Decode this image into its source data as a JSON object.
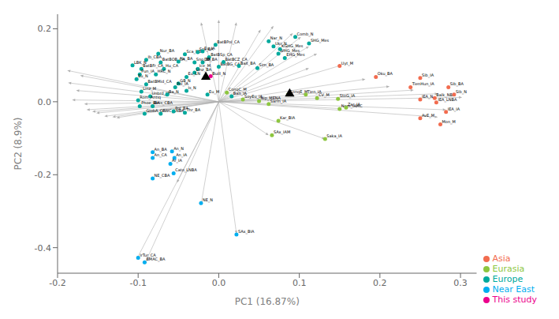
{
  "chart_data": {
    "type": "scatter",
    "xlabel": "PC1 (16.87%)",
    "ylabel": "PC2 (8.9%)",
    "xlim": [
      -0.2,
      0.32
    ],
    "ylim": [
      -0.47,
      0.24
    ],
    "xticks": [
      -0.2,
      -0.1,
      {
        "value": 0.0,
        "label": "0.0"
      },
      0.1,
      0.2,
      0.3
    ],
    "yticks": [
      -0.4,
      -0.2,
      {
        "value": 0.0,
        "label": "0.0"
      },
      0.2
    ],
    "legend": "lower right",
    "grid": false,
    "series": [
      {
        "name": "Asia",
        "color": "#f26c4f",
        "values": [
          {
            "label": "Uyt_M",
            "x": 0.15,
            "y": 0.098
          },
          {
            "label": "Oku_BA",
            "x": 0.195,
            "y": 0.068
          },
          {
            "label": "TienHun_IA",
            "x": 0.238,
            "y": 0.04
          },
          {
            "label": "Sib_IA",
            "x": 0.25,
            "y": 0.065
          },
          {
            "label": "Balk_NBA",
            "x": 0.268,
            "y": 0.01
          },
          {
            "label": "IEA_LNBA",
            "x": 0.27,
            "y": -0.002
          },
          {
            "label": "IEA_N",
            "x": 0.25,
            "y": 0.006
          },
          {
            "label": "Sib_BA",
            "x": 0.285,
            "y": 0.04
          },
          {
            "label": "Sib_N",
            "x": 0.292,
            "y": 0.02
          },
          {
            "label": "IEA_IA",
            "x": 0.282,
            "y": -0.028
          },
          {
            "label": "AvE_M",
            "x": 0.25,
            "y": -0.045
          },
          {
            "label": "Mon_M",
            "x": 0.275,
            "y": -0.062
          }
        ]
      },
      {
        "name": "Eurasia",
        "color": "#8dc63f",
        "values": [
          {
            "label": "ConqC_M",
            "x": 0.01,
            "y": 0.025
          },
          {
            "label": "SoyEu_IA",
            "x": 0.03,
            "y": 0.006
          },
          {
            "label": "Sarm_IA",
            "x": 0.062,
            "y": -0.006
          },
          {
            "label": "ConqE_M",
            "x": 0.086,
            "y": 0.02
          },
          {
            "label": "Tien_IA",
            "x": 0.108,
            "y": 0.02
          },
          {
            "label": "CV_M",
            "x": 0.122,
            "y": 0.01
          },
          {
            "label": "StoG_IA",
            "x": 0.148,
            "y": 0.008
          },
          {
            "label": "Nom_IAMC",
            "x": 0.15,
            "y": -0.02
          },
          {
            "label": "Zar_IA",
            "x": 0.158,
            "y": -0.016
          },
          {
            "label": "Kar_BIA",
            "x": 0.074,
            "y": -0.052
          },
          {
            "label": "SAx_IAM",
            "x": 0.066,
            "y": -0.092
          },
          {
            "label": "Saka_IA",
            "x": 0.132,
            "y": -0.102
          },
          {
            "label": "Nip_MENA",
            "x": 0.05,
            "y": 0.002
          }
        ]
      },
      {
        "name": "Europe",
        "color": "#00a99d",
        "values": [
          {
            "label": "Nur_BA",
            "x": -0.075,
            "y": 0.132
          },
          {
            "label": "Ib_CBA",
            "x": -0.09,
            "y": 0.115
          },
          {
            "label": "LBK_N",
            "x": -0.107,
            "y": 0.1
          },
          {
            "label": "BatBOB_CA",
            "x": -0.072,
            "y": 0.108
          },
          {
            "label": "BatBFr_CA",
            "x": -0.096,
            "y": 0.09
          },
          {
            "label": "Hu_CA",
            "x": -0.068,
            "y": 0.09
          },
          {
            "label": "Pun_IA",
            "x": -0.098,
            "y": 0.075
          },
          {
            "label": "Eu_N",
            "x": -0.102,
            "y": 0.062
          },
          {
            "label": "BatBMid_CA",
            "x": -0.09,
            "y": 0.048
          },
          {
            "label": "Linz_M",
            "x": -0.096,
            "y": 0.028
          },
          {
            "label": "Unbrd_IA",
            "x": -0.085,
            "y": 0.015
          },
          {
            "label": "Rom_Antiq",
            "x": -0.1,
            "y": 0.004
          },
          {
            "label": "Phoe_BIA",
            "x": -0.098,
            "y": -0.012
          },
          {
            "label": "GlobA_CA",
            "x": -0.092,
            "y": -0.033
          },
          {
            "label": "Beis_CBA",
            "x": -0.082,
            "y": -0.012
          },
          {
            "label": "CWC_LNBA",
            "x": -0.072,
            "y": -0.033
          },
          {
            "label": "Sca_NBA",
            "x": -0.042,
            "y": 0.13
          },
          {
            "label": "Sru_BA",
            "x": -0.026,
            "y": 0.136
          },
          {
            "label": "Nx_BA",
            "x": -0.05,
            "y": 0.11
          },
          {
            "label": "GB_N",
            "x": -0.05,
            "y": 0.05
          },
          {
            "label": "Pol_IA",
            "x": -0.054,
            "y": 0.04
          },
          {
            "label": "Ba_N",
            "x": -0.064,
            "y": 0.02
          },
          {
            "label": "Pol_BA",
            "x": -0.056,
            "y": -0.026
          },
          {
            "label": "Thr_BA",
            "x": -0.042,
            "y": -0.03
          },
          {
            "label": "Ice_M",
            "x": -0.026,
            "y": 0.09
          },
          {
            "label": "Linz_BA",
            "x": -0.03,
            "y": 0.08
          },
          {
            "label": "Eu_LN",
            "x": -0.04,
            "y": 0.068
          },
          {
            "label": "Is_N",
            "x": -0.04,
            "y": 0.03
          },
          {
            "label": "Eu_M",
            "x": -0.014,
            "y": 0.02
          },
          {
            "label": "BatBPol_CA",
            "x": -0.004,
            "y": 0.156
          },
          {
            "label": "BatBSp_CA",
            "x": -0.012,
            "y": 0.122
          },
          {
            "label": "BatBG_CA",
            "x": 0.0,
            "y": 0.096
          },
          {
            "label": "BatBCZ_CA",
            "x": 0.006,
            "y": 0.109
          },
          {
            "label": "Balt_BA",
            "x": 0.025,
            "y": 0.098
          },
          {
            "label": "Sim_BA",
            "x": 0.048,
            "y": 0.092
          },
          {
            "label": "Balt_IA",
            "x": 0.016,
            "y": 0.015
          },
          {
            "label": "Eu_IA",
            "x": -0.02,
            "y": 0.138
          },
          {
            "label": "Nar_N",
            "x": 0.062,
            "y": 0.166
          },
          {
            "label": "Ukr_N",
            "x": 0.068,
            "y": 0.152
          },
          {
            "label": "WHG_Mes",
            "x": 0.074,
            "y": 0.132
          },
          {
            "label": "EHG_Mes",
            "x": 0.082,
            "y": 0.12
          },
          {
            "label": "Comb_N",
            "x": 0.095,
            "y": 0.178
          },
          {
            "label": "SHG_Mes",
            "x": 0.112,
            "y": 0.16
          },
          {
            "label": "KGHG_Mes",
            "x": 0.076,
            "y": 0.144
          },
          {
            "label": "HRC_N",
            "x": -0.078,
            "y": 0.075
          },
          {
            "label": "DB_BA",
            "x": -0.02,
            "y": 0.108
          },
          {
            "label": "Sno_BA",
            "x": -0.03,
            "y": 0.108
          }
        ]
      },
      {
        "name": "Near East",
        "color": "#00aeef",
        "values": [
          {
            "label": "An_BA",
            "x": -0.082,
            "y": -0.138
          },
          {
            "label": "An_N",
            "x": -0.058,
            "y": -0.136
          },
          {
            "label": "An_CA",
            "x": -0.082,
            "y": -0.154
          },
          {
            "label": "An_IA",
            "x": -0.055,
            "y": -0.154
          },
          {
            "label": "Ar_IA",
            "x": -0.06,
            "y": -0.17
          },
          {
            "label": "Cato_LNBA",
            "x": -0.056,
            "y": -0.196
          },
          {
            "label": "NE_CBA",
            "x": -0.082,
            "y": -0.21
          },
          {
            "label": "NE_N",
            "x": -0.022,
            "y": -0.278
          },
          {
            "label": "SAx_BIA",
            "x": 0.022,
            "y": -0.364
          },
          {
            "label": "IrTur_CA",
            "x": -0.1,
            "y": -0.428
          },
          {
            "label": "BMAC_BA",
            "x": -0.092,
            "y": -0.44
          }
        ]
      },
      {
        "name": "This study",
        "color": "#ec008c",
        "values": [
          {
            "label": "Buill_N",
            "x": -0.01,
            "y": 0.07
          }
        ]
      }
    ],
    "arrows": {
      "color": "#b0b0b0",
      "values": [
        [
          0.0,
          0.0,
          -0.188,
          0.086
        ],
        [
          0.0,
          0.0,
          -0.172,
          0.072
        ],
        [
          0.0,
          0.0,
          -0.187,
          0.052
        ],
        [
          0.0,
          0.0,
          -0.177,
          0.031
        ],
        [
          0.0,
          0.0,
          -0.182,
          0.005
        ],
        [
          0.0,
          0.0,
          -0.167,
          -0.006
        ],
        [
          0.0,
          0.0,
          -0.164,
          -0.022
        ],
        [
          0.0,
          0.0,
          -0.157,
          -0.027
        ],
        [
          0.0,
          0.0,
          -0.152,
          -0.031
        ],
        [
          0.0,
          0.0,
          -0.142,
          -0.04
        ],
        [
          0.0,
          0.0,
          -0.132,
          -0.042
        ],
        [
          0.0,
          0.0,
          -0.127,
          -0.044
        ],
        [
          0.0,
          0.0,
          0.0,
          0.225
        ],
        [
          0.0,
          0.0,
          0.022,
          0.218
        ],
        [
          0.0,
          0.0,
          -0.022,
          0.218
        ],
        [
          0.0,
          0.0,
          0.068,
          0.208
        ],
        [
          0.0,
          0.0,
          0.052,
          0.198
        ],
        [
          0.0,
          0.0,
          0.092,
          0.188
        ],
        [
          0.0,
          0.0,
          0.102,
          0.178
        ],
        [
          0.0,
          0.0,
          0.112,
          0.152
        ],
        [
          0.0,
          0.0,
          0.122,
          0.132
        ],
        [
          0.0,
          0.0,
          0.182,
          0.062
        ],
        [
          0.0,
          0.0,
          0.212,
          0.042
        ],
        [
          0.0,
          0.0,
          0.242,
          0.032
        ],
        [
          0.0,
          0.0,
          0.272,
          0.022
        ],
        [
          0.0,
          0.0,
          0.302,
          0.012
        ],
        [
          0.0,
          0.0,
          0.282,
          -0.022
        ],
        [
          0.0,
          0.0,
          0.272,
          -0.042
        ],
        [
          0.0,
          0.0,
          -0.052,
          -0.222
        ],
        [
          0.0,
          0.0,
          -0.022,
          -0.282
        ],
        [
          0.0,
          0.0,
          0.022,
          -0.362
        ],
        [
          0.0,
          0.0,
          -0.102,
          -0.432
        ],
        [
          0.0,
          0.0,
          -0.092,
          -0.445
        ],
        [
          0.0,
          0.0,
          0.062,
          -0.092
        ],
        [
          0.0,
          0.0,
          0.132,
          -0.102
        ],
        [
          0.0,
          0.0,
          0.152,
          -0.019
        ],
        [
          0.0,
          0.0,
          0.152,
          0.1
        ],
        [
          0.0,
          0.0,
          0.112,
          0.092
        ]
      ]
    },
    "triangles": {
      "color": "black",
      "marker": "triangle",
      "values": [
        {
          "x": -0.016,
          "y": 0.068
        },
        {
          "x": 0.088,
          "y": 0.022
        }
      ]
    }
  }
}
